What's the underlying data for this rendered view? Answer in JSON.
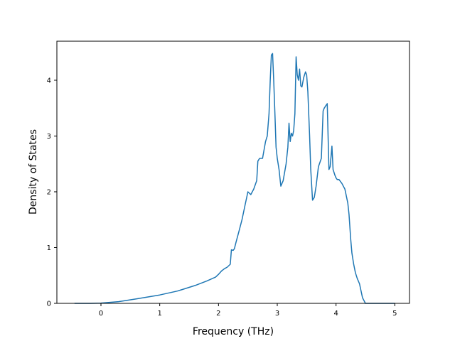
{
  "chart_data": {
    "type": "line",
    "title": "",
    "xlabel": "Frequency (THz)",
    "ylabel": "Density of States",
    "xlim": [
      -0.75,
      5.25
    ],
    "ylim": [
      0,
      4.7
    ],
    "xticks": [
      0,
      1,
      2,
      3,
      4,
      5
    ],
    "yticks": [
      0,
      1,
      2,
      3,
      4
    ],
    "grid": false,
    "line_color": "#1f77b4",
    "series": [
      {
        "x": [
          -0.45,
          -0.2,
          0,
          0.3,
          0.6,
          1.0,
          1.3,
          1.6,
          1.8,
          1.95,
          2.0,
          2.05,
          2.1,
          2.15,
          2.2,
          2.22,
          2.25,
          2.27,
          2.3,
          2.35,
          2.4,
          2.45,
          2.5,
          2.55,
          2.6,
          2.65,
          2.67,
          2.7,
          2.75,
          2.8,
          2.83,
          2.86,
          2.88,
          2.9,
          2.92,
          2.94,
          2.96,
          2.98,
          3.0,
          3.03,
          3.06,
          3.1,
          3.15,
          3.18,
          3.2,
          3.22,
          3.24,
          3.26,
          3.28,
          3.3,
          3.32,
          3.34,
          3.36,
          3.38,
          3.4,
          3.42,
          3.45,
          3.48,
          3.5,
          3.52,
          3.55,
          3.57,
          3.6,
          3.63,
          3.66,
          3.7,
          3.75,
          3.78,
          3.8,
          3.83,
          3.85,
          3.88,
          3.9,
          3.93,
          3.95,
          3.98,
          4.0,
          4.02,
          4.05,
          4.1,
          4.15,
          4.2,
          4.22,
          4.25,
          4.27,
          4.3,
          4.33,
          4.36,
          4.4,
          4.45,
          4.5,
          4.52,
          4.55,
          4.6,
          5.0
        ],
        "y": [
          0,
          0,
          0.005,
          0.03,
          0.08,
          0.15,
          0.22,
          0.32,
          0.4,
          0.47,
          0.52,
          0.58,
          0.62,
          0.65,
          0.7,
          0.96,
          0.95,
          0.98,
          1.1,
          1.3,
          1.5,
          1.75,
          2.0,
          1.95,
          2.05,
          2.2,
          2.55,
          2.6,
          2.6,
          2.9,
          3.0,
          3.4,
          4.0,
          4.45,
          4.48,
          4.0,
          3.4,
          2.8,
          2.6,
          2.4,
          2.1,
          2.2,
          2.5,
          2.8,
          3.23,
          2.9,
          3.05,
          3.0,
          3.1,
          3.4,
          4.42,
          4.1,
          4.0,
          4.2,
          3.9,
          3.88,
          4.05,
          4.15,
          4.1,
          3.8,
          3.0,
          2.4,
          1.85,
          1.9,
          2.1,
          2.45,
          2.6,
          3.45,
          3.5,
          3.55,
          3.58,
          2.4,
          2.45,
          2.82,
          2.4,
          2.3,
          2.25,
          2.22,
          2.22,
          2.15,
          2.05,
          1.8,
          1.6,
          1.15,
          0.9,
          0.7,
          0.55,
          0.45,
          0.35,
          0.1,
          0,
          0,
          0,
          0,
          0
        ]
      }
    ]
  }
}
